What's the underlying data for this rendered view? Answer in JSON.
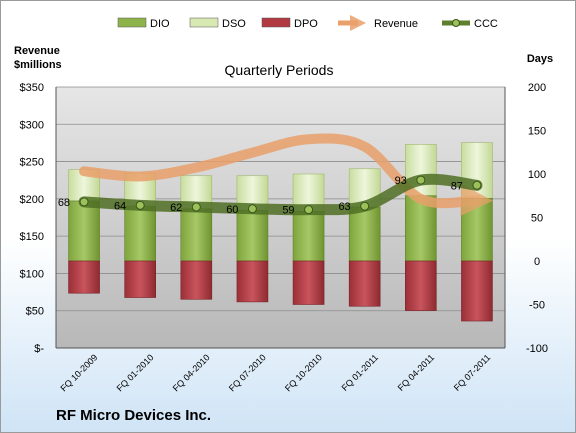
{
  "chart_data": {
    "type": "bar",
    "title": "Quarterly Periods",
    "footer_title": "RF Micro Devices Inc.",
    "left_axis_label": [
      "Revenue",
      "$millions"
    ],
    "right_axis_label": "Days",
    "left_ticks": [
      "$350",
      "$300",
      "$250",
      "$200",
      "$150",
      "$100",
      "$50",
      "$-"
    ],
    "right_ticks": [
      "200",
      "150",
      "100",
      "50",
      "0",
      "-50",
      "-100"
    ],
    "left_range": [
      0,
      350
    ],
    "right_range": [
      -100,
      200
    ],
    "categories": [
      "FQ 10-2009",
      "FQ 01-2010",
      "FQ 04-2010",
      "FQ 07-2010",
      "FQ 10-2010",
      "FQ 01-2011",
      "FQ 04-2011",
      "FQ 07-2011"
    ],
    "legend": [
      {
        "name": "DIO",
        "kind": "bar",
        "color": "#8db34a"
      },
      {
        "name": "DSO",
        "kind": "bar",
        "color": "#d7e8b3"
      },
      {
        "name": "DPO",
        "kind": "bar",
        "color": "#b13a42"
      },
      {
        "name": "Revenue",
        "kind": "arrow",
        "color": "#e9a06a"
      },
      {
        "name": "CCC",
        "kind": "line",
        "color": "#5e7f2d"
      }
    ],
    "series": [
      {
        "name": "DIO",
        "axis": "right",
        "values": [
          69,
          63,
          60,
          58,
          57,
          62,
          75,
          72
        ]
      },
      {
        "name": "DSO",
        "axis": "right",
        "values": [
          36,
          38,
          38,
          40,
          43,
          44,
          59,
          64
        ]
      },
      {
        "name": "DPO",
        "axis": "right",
        "values": [
          -37,
          -42,
          -44,
          -47,
          -50,
          -52,
          -57,
          -69
        ]
      },
      {
        "name": "Revenue",
        "axis": "left",
        "values": [
          237,
          230,
          242,
          262,
          280,
          270,
          200,
          198
        ]
      },
      {
        "name": "CCC",
        "axis": "right",
        "values": [
          68,
          64,
          62,
          60,
          59,
          63,
          93,
          87
        ]
      }
    ],
    "ccc_labels": [
      "68",
      "64",
      "62",
      "60",
      "59",
      "63",
      "93",
      "87"
    ]
  }
}
